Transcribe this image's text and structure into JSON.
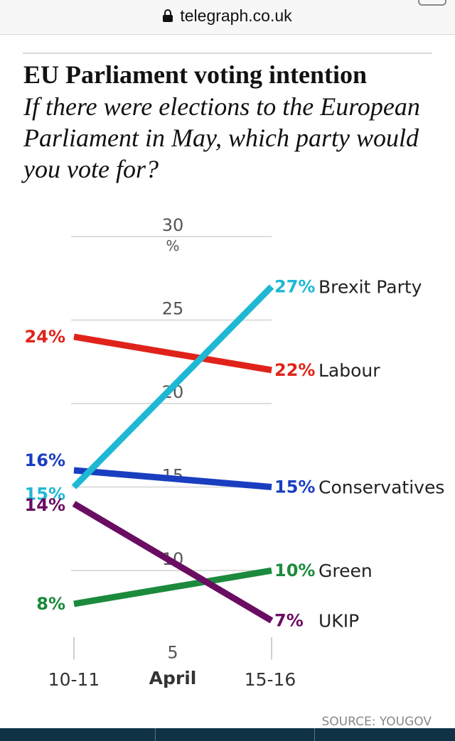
{
  "browser": {
    "url": "telegraph.co.uk"
  },
  "header": {
    "title": "EU Parliament voting intention",
    "subtitle": "If there were elections to the European Parliament in May, which party would you vote for?"
  },
  "source": "SOURCE: YOUGOV",
  "chart_data": {
    "type": "line",
    "title": "EU Parliament voting intention",
    "subtitle": "If there were elections to the European Parliament in May, which party would you vote for?",
    "categories": [
      "10-11",
      "15-16"
    ],
    "xlabel": "April",
    "ylabel": "%",
    "ylim": [
      5,
      30
    ],
    "yticks": [
      "5",
      "10",
      "15",
      "20",
      "25",
      "30"
    ],
    "grid": true,
    "series": [
      {
        "name": "Brexit Party",
        "values": [
          15,
          27
        ],
        "start_label": "15%",
        "end_label": "27%",
        "color": "#1fb8d4"
      },
      {
        "name": "Labour",
        "values": [
          24,
          22
        ],
        "start_label": "24%",
        "end_label": "22%",
        "color": "#e0231a"
      },
      {
        "name": "Conservatives",
        "values": [
          16,
          15
        ],
        "start_label": "16%",
        "end_label": "15%",
        "color": "#1a3ec0"
      },
      {
        "name": "Green",
        "values": [
          8,
          10
        ],
        "start_label": "8%",
        "end_label": "10%",
        "color": "#1b8a3c"
      },
      {
        "name": "UKIP",
        "values": [
          14,
          7
        ],
        "start_label": "14%",
        "end_label": "7%",
        "color": "#6a0d62"
      }
    ],
    "source": "SOURCE: YOUGOV"
  }
}
